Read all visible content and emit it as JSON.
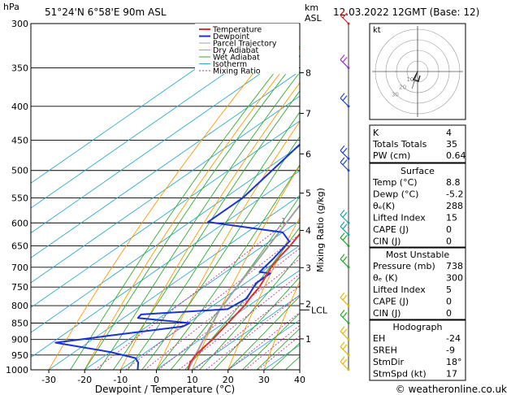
{
  "header": {
    "location": "51°24'N  6°58'E  90m  ASL",
    "datetime": "12.03.2022  12GMT  (Base: 12)",
    "hpa_unit": "hPa",
    "km_unit": "km",
    "asl_unit": "ASL"
  },
  "footer": {
    "credit": "© weatheronline.co.uk"
  },
  "colors": {
    "temperature": "#e03030",
    "dewpoint": "#1a33d9",
    "parcel": "#a0a0a0",
    "dry_adiabat": "#ff9900",
    "wet_adiabat": "#33aa33",
    "isotherm": "#33aacc",
    "mixing_ratio": "#cc3399",
    "wind_teal": "#1aa3a3",
    "wind_green": "#22aa22",
    "wind_yellow": "#e6b800",
    "wind_purple": "#9933cc",
    "wind_red": "#dd2222",
    "wind_blue": "#2244cc"
  },
  "legend": [
    "Temperature",
    "Dewpoint",
    "Parcel Trajectory",
    "Dry Adiabat",
    "Wet Adiabat",
    "Isotherm",
    "Mixing Ratio"
  ],
  "chart_data": {
    "type": "skew-t",
    "title": "51°24'N  6°58'E  90m  ASL",
    "xlabel": "Dewpoint / Temperature (°C)",
    "ylabel_left": "hPa",
    "ylabel_right": "Mixing Ratio (g/kg)",
    "xlim": [
      -35,
      40
    ],
    "ylim_hpa": [
      1000,
      300
    ],
    "skew_px_per_log": 510,
    "x_ticks": [
      -30,
      -20,
      -10,
      0,
      10,
      20,
      30,
      40
    ],
    "pressure_levels": [
      300,
      350,
      400,
      450,
      500,
      550,
      600,
      650,
      700,
      750,
      800,
      850,
      900,
      950,
      1000
    ],
    "km_ticks": [
      {
        "km": 8,
        "p": 356,
        "label": "8"
      },
      {
        "km": 7,
        "p": 410,
        "label": "7"
      },
      {
        "km": 6,
        "p": 472,
        "label": "6"
      },
      {
        "km": 5,
        "p": 541,
        "label": "5"
      },
      {
        "km": 4,
        "p": 616,
        "label": "4"
      },
      {
        "km": 3,
        "p": 701,
        "label": "3"
      },
      {
        "km": 2,
        "p": 795,
        "label": "2"
      },
      {
        "km": 1,
        "p": 898,
        "label": "1"
      }
    ],
    "lcl": {
      "p": 812,
      "label": "LCL"
    },
    "mixing_ratios": [
      1,
      2,
      3,
      4,
      6,
      8,
      10,
      15,
      20,
      25
    ],
    "mixing_label_p": 603,
    "series": [
      {
        "name": "Temperature",
        "points": [
          [
            1000,
            8.8
          ],
          [
            975,
            6.5
          ],
          [
            950,
            5.0
          ],
          [
            925,
            4.2
          ],
          [
            900,
            3.5
          ],
          [
            850,
            1.2
          ],
          [
            800,
            -1.2
          ],
          [
            775,
            -3.0
          ],
          [
            750,
            -4.5
          ],
          [
            725,
            -6.8
          ],
          [
            700,
            -9.2
          ],
          [
            675,
            -11.0
          ],
          [
            650,
            -12.5
          ],
          [
            600,
            -16.5
          ],
          [
            550,
            -21.5
          ],
          [
            500,
            -27.0
          ],
          [
            450,
            -33.0
          ],
          [
            400,
            -40.5
          ],
          [
            350,
            -48.5
          ],
          [
            300,
            -56.0
          ]
        ]
      },
      {
        "name": "Dewpoint",
        "points": [
          [
            1000,
            -5.2
          ],
          [
            975,
            -8.0
          ],
          [
            960,
            -10.5
          ],
          [
            940,
            -20.0
          ],
          [
            910,
            -39.0
          ],
          [
            890,
            -28.0
          ],
          [
            860,
            -10.0
          ],
          [
            850,
            -9.5
          ],
          [
            835,
            -26.0
          ],
          [
            825,
            -26.5
          ],
          [
            810,
            -4.5
          ],
          [
            780,
            -3.5
          ],
          [
            740,
            -7.0
          ],
          [
            715,
            -7.0
          ],
          [
            712,
            -10.5
          ],
          [
            680,
            -12.0
          ],
          [
            640,
            -14.5
          ],
          [
            620,
            -20.0
          ],
          [
            598,
            -45.0
          ],
          [
            550,
            -45.0
          ],
          [
            450,
            -51.0
          ],
          [
            400,
            -54.5
          ],
          [
            390,
            -58.5
          ],
          [
            375,
            -62.0
          ],
          [
            362,
            -62.5
          ],
          [
            345,
            -46.0
          ],
          [
            320,
            -47.0
          ],
          [
            310,
            -50.0
          ],
          [
            300,
            -54.0
          ]
        ]
      },
      {
        "name": "Parcel Trajectory",
        "points": [
          [
            1000,
            8.8
          ],
          [
            900,
            1.0
          ],
          [
            812,
            -6.4
          ],
          [
            750,
            -10.8
          ],
          [
            700,
            -14.5
          ],
          [
            650,
            -18.5
          ],
          [
            600,
            -22.8
          ],
          [
            550,
            -27.5
          ],
          [
            500,
            -33.0
          ],
          [
            450,
            -39.5
          ],
          [
            400,
            -47.0
          ],
          [
            350,
            -55.5
          ],
          [
            300,
            -65.0
          ]
        ]
      }
    ],
    "hodograph": {
      "label": "kt",
      "rings_kt": [
        10,
        20,
        30,
        40
      ],
      "ring_labels": [
        "10",
        "20",
        "30"
      ],
      "storm_dir_deg": 18,
      "storm_speed_kt": 17
    },
    "wind_barbs": [
      {
        "p": 300,
        "color_key": "wind_red"
      },
      {
        "p": 350,
        "color_key": "wind_purple"
      },
      {
        "p": 400,
        "color_key": "wind_blue"
      },
      {
        "p": 480,
        "color_key": "wind_blue"
      },
      {
        "p": 500,
        "color_key": "wind_blue"
      },
      {
        "p": 600,
        "color_key": "wind_teal"
      },
      {
        "p": 625,
        "color_key": "wind_teal"
      },
      {
        "p": 650,
        "color_key": "wind_green"
      },
      {
        "p": 700,
        "color_key": "wind_green"
      },
      {
        "p": 800,
        "color_key": "wind_yellow"
      },
      {
        "p": 850,
        "color_key": "wind_green"
      },
      {
        "p": 900,
        "color_key": "wind_yellow"
      },
      {
        "p": 950,
        "color_key": "wind_yellow"
      },
      {
        "p": 1000,
        "color_key": "wind_yellow"
      }
    ]
  },
  "indices": {
    "rows": [
      {
        "label": "K",
        "value": "4"
      },
      {
        "label": "Totals Totals",
        "value": "35"
      },
      {
        "label": "PW (cm)",
        "value": "0.64"
      }
    ]
  },
  "surface": {
    "title": "Surface",
    "rows": [
      {
        "label": "Temp (°C)",
        "value": "8.8"
      },
      {
        "label": "Dewp (°C)",
        "value": "-5.2"
      },
      {
        "label": "θₑ(K)",
        "value": "288"
      },
      {
        "label": "Lifted Index",
        "value": "15"
      },
      {
        "label": "CAPE (J)",
        "value": "0"
      },
      {
        "label": "CIN (J)",
        "value": "0"
      }
    ]
  },
  "unstable": {
    "title": "Most Unstable",
    "rows": [
      {
        "label": "Pressure (mb)",
        "value": "738"
      },
      {
        "label": "θₑ (K)",
        "value": "300"
      },
      {
        "label": "Lifted Index",
        "value": "5"
      },
      {
        "label": "CAPE (J)",
        "value": "0"
      },
      {
        "label": "CIN (J)",
        "value": "0"
      }
    ]
  },
  "hodo_table": {
    "title": "Hodograph",
    "rows": [
      {
        "label": "EH",
        "value": "-24"
      },
      {
        "label": "SREH",
        "value": "-9"
      },
      {
        "label": "StmDir",
        "value": "18°"
      },
      {
        "label": "StmSpd (kt)",
        "value": "17"
      }
    ]
  }
}
